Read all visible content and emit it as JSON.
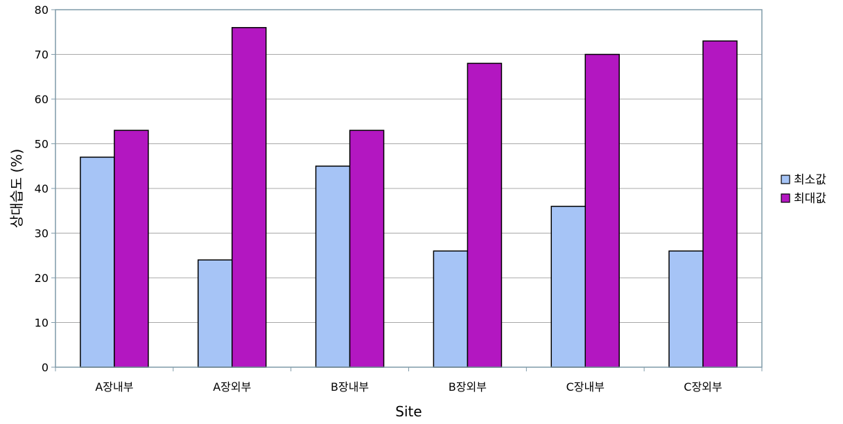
{
  "chart_data": {
    "type": "bar",
    "categories": [
      "A장내부",
      "A장외부",
      "B장내부",
      "B장외부",
      "C장내부",
      "C장외부"
    ],
    "series": [
      {
        "name": "최소값",
        "color": "#a6c4f6",
        "values": [
          47,
          24,
          45,
          26,
          36,
          26
        ]
      },
      {
        "name": "최대값",
        "color": "#b317c1",
        "values": [
          53,
          76,
          53,
          68,
          70,
          73
        ]
      }
    ],
    "xlabel": "Site",
    "ylabel": "상대습도 (%)",
    "ylim": [
      0,
      80
    ],
    "yticks": [
      "0",
      "10",
      "20",
      "30",
      "40",
      "50",
      "60",
      "70",
      "80"
    ],
    "grid": true,
    "legend_position": "right"
  }
}
